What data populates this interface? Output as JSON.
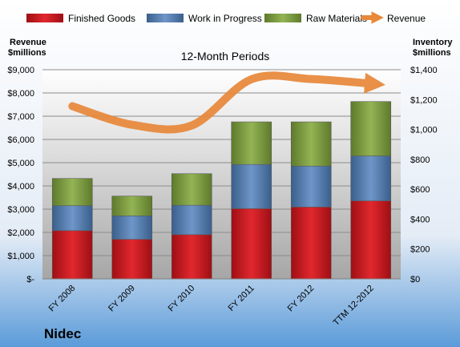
{
  "chart_data": {
    "type": "bar",
    "stacked": true,
    "title": "12-Month Periods",
    "company": "Nidec",
    "categories": [
      "FY 2008",
      "FY 2009",
      "FY 2010",
      "FY 2011",
      "FY 2012",
      "TTM 12-2012"
    ],
    "left_axis": {
      "title_line1": "Revenue",
      "title_line2": "$millions",
      "range": [
        0,
        9000
      ],
      "ticks": [
        0,
        1000,
        2000,
        3000,
        4000,
        5000,
        6000,
        7000,
        8000,
        9000
      ],
      "tick_labels": [
        "$-",
        "$1,000",
        "$2,000",
        "$3,000",
        "$4,000",
        "$5,000",
        "$6,000",
        "$7,000",
        "$8,000",
        "$9,000"
      ]
    },
    "right_axis": {
      "title_line1": "Inventory",
      "title_line2": "$millions",
      "range": [
        0,
        1400
      ],
      "ticks": [
        0,
        200,
        400,
        600,
        800,
        1000,
        1200,
        1400
      ],
      "tick_labels": [
        "$0",
        "$200",
        "$400",
        "$600",
        "$800",
        "$1,000",
        "$1,200",
        "$1,400"
      ]
    },
    "series": [
      {
        "name": "Finished Goods",
        "axis": "right",
        "color": "#C0151B",
        "values": [
          323,
          265,
          296,
          470,
          481,
          522
        ]
      },
      {
        "name": "Work in Progress",
        "axis": "right",
        "color": "#4F81BD",
        "values": [
          167,
          157,
          197,
          296,
          274,
          301
        ]
      },
      {
        "name": "Raw Materials",
        "axis": "right",
        "color": "#77933C",
        "values": [
          182,
          132,
          211,
          285,
          296,
          364
        ]
      },
      {
        "name": "Revenue",
        "axis": "left",
        "type": "line",
        "color": "#E8883A",
        "values": [
          7430,
          6630,
          6600,
          8590,
          8600,
          8400
        ]
      }
    ],
    "legend_position": "top",
    "grid": true
  }
}
